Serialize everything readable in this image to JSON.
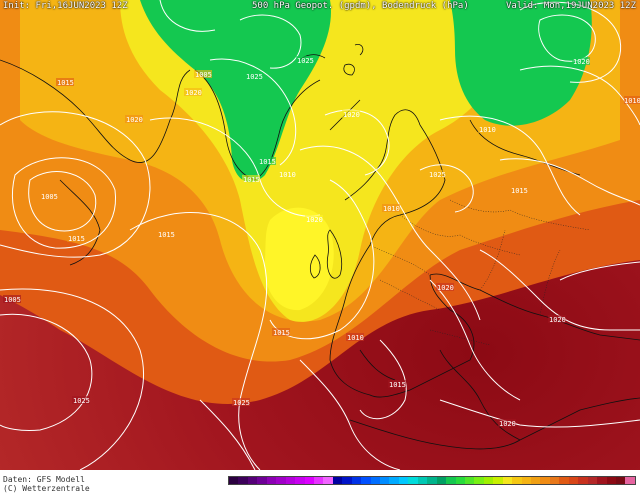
{
  "header": {
    "init": "Init: Fri,16JUN2023 12Z",
    "title": "500 hPa Geopot. (gpdm), Bodendruck (hPa)",
    "valid": "Valid: Mon,19JUN2023 12Z"
  },
  "footer": {
    "data_line": "Daten: GFS Modell",
    "model_line": "(C) Wetterzentrale"
  },
  "isobars": [
    {
      "label": "1015"
    },
    {
      "label": "1020"
    },
    {
      "label": "1005"
    },
    {
      "label": "1020"
    },
    {
      "label": "1005"
    },
    {
      "label": "1015"
    },
    {
      "label": "1015"
    },
    {
      "label": "1025"
    },
    {
      "label": "1025"
    },
    {
      "label": "1015"
    },
    {
      "label": "1015"
    },
    {
      "label": "1010"
    },
    {
      "label": "1020"
    },
    {
      "label": "1020"
    },
    {
      "label": "1025"
    },
    {
      "label": "1010"
    },
    {
      "label": "1015"
    },
    {
      "label": "1010"
    },
    {
      "label": "1020"
    },
    {
      "label": "1010"
    },
    {
      "label": "1005"
    },
    {
      "label": "1015"
    },
    {
      "label": "1010"
    },
    {
      "label": "1020"
    },
    {
      "label": "1020"
    },
    {
      "label": "1015"
    },
    {
      "label": "1025"
    },
    {
      "label": "1025"
    },
    {
      "label": "1020"
    }
  ],
  "colors": {
    "deep_red": "#a0141e",
    "red": "#c8321e",
    "orange_red": "#e05a14",
    "orange": "#f08c14",
    "amber": "#f5b414",
    "yellow": "#f5e61e",
    "bright_yellow": "#fff528",
    "green": "#14c850",
    "bright_green": "#28dc3c"
  },
  "colorbar": [
    "#2b0040",
    "#3c005a",
    "#550078",
    "#6e0096",
    "#8c00b4",
    "#a000c8",
    "#b400dc",
    "#c800f0",
    "#dc00ff",
    "#e632ff",
    "#f064ff",
    "#0000a0",
    "#0014c8",
    "#0032e6",
    "#0050ff",
    "#006eff",
    "#008cff",
    "#00aaff",
    "#00c8ff",
    "#00dcdc",
    "#00c8b4",
    "#00b48c",
    "#00a064",
    "#14c850",
    "#28dc3c",
    "#50e628",
    "#78f014",
    "#a0f000",
    "#c8f000",
    "#f5e61e",
    "#f5c814",
    "#f5b414",
    "#f0a014",
    "#f08c14",
    "#e8781a",
    "#e05a14",
    "#d84618",
    "#c8321e",
    "#b42828",
    "#a0141e",
    "#8c0a14",
    "#780a14",
    "#e664a0"
  ]
}
